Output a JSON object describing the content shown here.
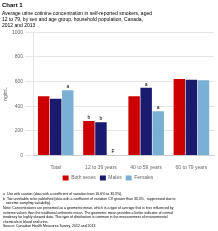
{
  "chart_data": {
    "type": "bar",
    "title": "Chart 1",
    "subtitle": [
      "Average urine cotinine concentration in self-reported smokers, aged",
      "12 to 79, by sex and age group, household population, Canada,",
      "2012 and 2013"
    ],
    "y_label": "ng/mL",
    "categories": [
      "Total",
      "12 to 39 years",
      "40 to 59 years",
      "60 to 79 years"
    ],
    "series": [
      {
        "name": "Both sexes",
        "color": "#cc0000",
        "values": [
          480,
          280,
          480,
          620
        ]
      },
      {
        "name": "Males",
        "color": "#1a1a6e",
        "values": [
          460,
          270,
          550,
          615
        ]
      },
      {
        "name": "Females",
        "color": "#7ab0d4",
        "values": [
          530,
          null,
          360,
          610
        ]
      }
    ],
    "ylim": [
      0,
      1000
    ],
    "yticks": [
      0,
      200,
      400,
      600,
      800,
      1000
    ],
    "grid": true,
    "legend": "bottom",
    "annotations": [
      {
        "category": "Total",
        "series": "Females",
        "text": "a"
      },
      {
        "category": "12 to 39 years",
        "series": "Both sexes",
        "text": "b"
      },
      {
        "category": "12 to 39 years",
        "series": "Males",
        "text": "b"
      },
      {
        "category": "12 to 39 years",
        "series": "Females",
        "text": "F"
      },
      {
        "category": "40 to 59 years",
        "series": "Males",
        "text": "a"
      },
      {
        "category": "40 to 59 years",
        "series": "Females",
        "text": "a"
      }
    ],
    "notes": [
      "a  Use with caution (data with a coefficient of variation from 16.6% to 33.3%).",
      "b  Too unreliable to be published (data with a coefficient of variation CV greater than 33.3%,  suppressed due to",
      "   extreme sampling variability).",
      "Note: Concentrations are presented as a geometric mean, which is a type of average that is less influenced by",
      "extreme values than the traditional arithmetic mean. The geometric mean provides a better indicator of central",
      "tendency for highly skewed data. This type of distribution is common in the measurement of environmental",
      "chemicals in blood and urine.",
      "Source: Canadian Health Measures Survey, 2012 and 2013"
    ]
  }
}
